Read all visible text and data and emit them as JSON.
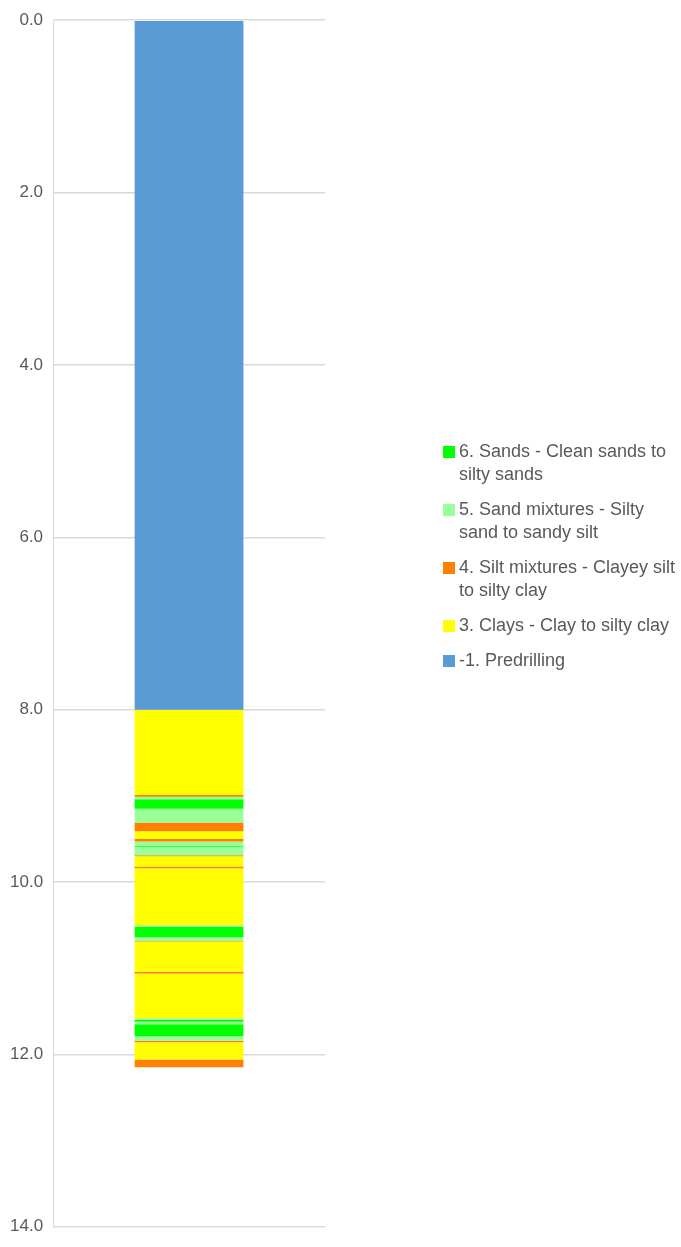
{
  "chart_data": {
    "type": "bar",
    "stacked": true,
    "categories": [
      null
    ],
    "legend": "right",
    "grid": "y",
    "ylim": [
      14,
      0
    ],
    "yticks": [
      {
        "value": 0,
        "label": "0.0"
      },
      {
        "value": 2,
        "label": "2.0"
      },
      {
        "value": 4,
        "label": "4.0"
      },
      {
        "value": 6,
        "label": "6.0"
      },
      {
        "value": 8,
        "label": "8.0"
      },
      {
        "value": 10,
        "label": "10.0"
      },
      {
        "value": 12,
        "label": "12.0"
      },
      {
        "value": 14,
        "label": "14.0"
      }
    ],
    "series": [
      {
        "name": "-1. Predrilling",
        "color": "#5b9bd5",
        "values": [
          8.0
        ]
      },
      {
        "name": "3. Clays - Clay to silty clay",
        "color": "#ffff00",
        "values": [
          0.99
        ]
      },
      {
        "name": "4. Silt mixtures - Clayey silt to silty clay",
        "color": "#ff7f00",
        "values": [
          0.02
        ]
      },
      {
        "name": "5. Sand mixtures - Silty sand to sandy silt",
        "color": "#99ff99",
        "values": [
          0.03
        ]
      },
      {
        "name": "6. Sands - Clean sands to silty sands",
        "color": "#00ff00",
        "values": [
          0.11
        ]
      },
      {
        "color": "#99ff99",
        "values": [
          0.16
        ]
      },
      {
        "color": "#ff7f00",
        "values": [
          0.1
        ]
      },
      {
        "color": "#ffff00",
        "values": [
          0.09
        ]
      },
      {
        "color": "#ff7f00",
        "values": [
          0.03
        ]
      },
      {
        "color": "#99ff99",
        "values": [
          0.05
        ]
      },
      {
        "color": "#00ff00",
        "values": [
          0.01
        ]
      },
      {
        "color": "#99ff99",
        "values": [
          0.1
        ]
      },
      {
        "color": "#ff7f00",
        "values": [
          0.01
        ]
      },
      {
        "color": "#ffff00",
        "values": [
          0.12
        ]
      },
      {
        "color": "#ff7f00",
        "values": [
          0.02
        ]
      },
      {
        "color": "#ffff00",
        "values": [
          0.66
        ]
      },
      {
        "color": "#99ff99",
        "values": [
          0.02
        ]
      },
      {
        "color": "#00ff00",
        "values": [
          0.12
        ]
      },
      {
        "color": "#99ff99",
        "values": [
          0.04
        ]
      },
      {
        "color": "#ff7f00",
        "values": [
          0.01
        ]
      },
      {
        "color": "#ffff00",
        "values": [
          0.35
        ]
      },
      {
        "color": "#ff7f00",
        "values": [
          0.02
        ]
      },
      {
        "color": "#ffff00",
        "values": [
          0.52
        ]
      },
      {
        "color": "#99ff99",
        "values": [
          0.02
        ]
      },
      {
        "color": "#00ff00",
        "values": [
          0.02
        ]
      },
      {
        "color": "#99ff99",
        "values": [
          0.03
        ]
      },
      {
        "color": "#00ff00",
        "values": [
          0.14
        ]
      },
      {
        "color": "#99ff99",
        "values": [
          0.05
        ]
      },
      {
        "color": "#ff7f00",
        "values": [
          0.02
        ]
      },
      {
        "color": "#ffff00",
        "values": [
          0.2
        ]
      },
      {
        "color": "#ff7f00",
        "values": [
          0.09
        ]
      }
    ]
  }
}
